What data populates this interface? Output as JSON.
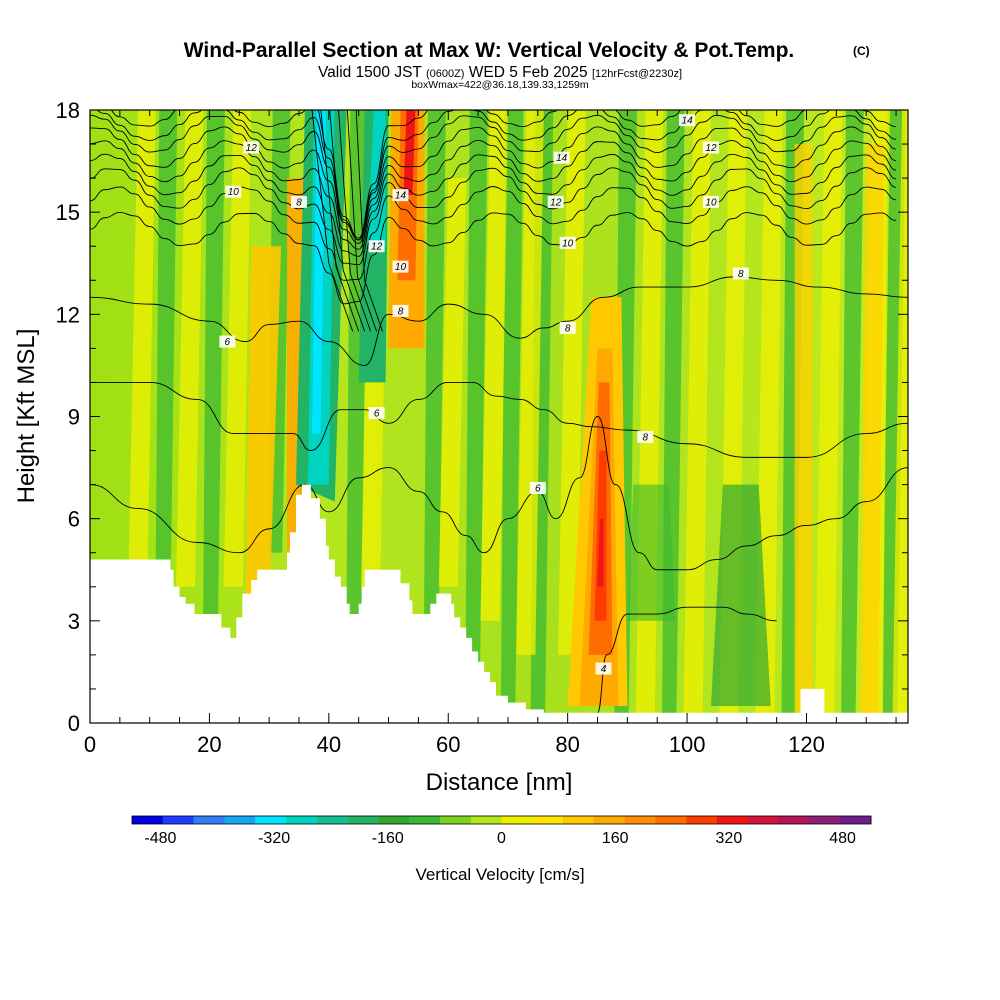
{
  "chart_data": {
    "type": "heatmap",
    "title": "Wind-Parallel Section at Max W: Vertical Velocity & Pot.Temp.",
    "title_mark": "(C)",
    "subtitle": {
      "pre": "Valid 1500 JST",
      "utc": "(0600Z)",
      "date": "WED 5 Feb 2025",
      "fcst": "[12hrFcst@2230z]"
    },
    "subtitle2": "boxWmax=422@36.18,139.33,1259m",
    "xlabel": "Distance [nm]",
    "ylabel": "Height [Kft MSL]",
    "xlim": [
      0,
      137
    ],
    "ylim": [
      0,
      18
    ],
    "xticks": [
      0,
      20,
      40,
      60,
      80,
      100,
      120
    ],
    "yticks": [
      0,
      3,
      6,
      9,
      12,
      15,
      18
    ],
    "colorbar": {
      "label": "Vertical Velocity [cm/s]",
      "ticks": [
        -480,
        -320,
        -160,
        0,
        160,
        320,
        480
      ],
      "min": -520,
      "max": 520,
      "colors": [
        "#0000e6",
        "#1e3cff",
        "#2f7df5",
        "#16a6f2",
        "#00e5ff",
        "#00d3c0",
        "#14c090",
        "#22b464",
        "#32a832",
        "#3cb932",
        "#7dd21e",
        "#b4e61e",
        "#eef000",
        "#ffe600",
        "#ffc800",
        "#ffaa00",
        "#ff8c00",
        "#ff6c00",
        "#ff3c00",
        "#f01414",
        "#d2143c",
        "#b4145a",
        "#8c1e78",
        "#6e1e8c"
      ]
    },
    "updraft_columns_nm": [
      10,
      27,
      35,
      52,
      85,
      110,
      120,
      130
    ],
    "downdraft_columns_nm": [
      38,
      49
    ],
    "theta_contours": [
      {
        "label": "4",
        "label_at": [
          86,
          1.6
        ]
      },
      {
        "label": "6",
        "label_at": [
          75,
          6.9
        ]
      },
      {
        "label": "6",
        "label_at": [
          48,
          9.1
        ]
      },
      {
        "label": "6",
        "label_at": [
          23,
          11.2
        ]
      },
      {
        "label": "8",
        "label_at": [
          93,
          8.4
        ]
      },
      {
        "label": "8",
        "label_at": [
          80,
          11.6
        ]
      },
      {
        "label": "8",
        "label_at": [
          52,
          12.1
        ]
      },
      {
        "label": "8",
        "label_at": [
          35,
          15.3
        ]
      },
      {
        "label": "8",
        "label_at": [
          109,
          13.2
        ]
      },
      {
        "label": "10",
        "label_at": [
          24,
          15.6
        ]
      },
      {
        "label": "10",
        "label_at": [
          52,
          13.4
        ]
      },
      {
        "label": "10",
        "label_at": [
          80,
          14.1
        ]
      },
      {
        "label": "10",
        "label_at": [
          104,
          15.3
        ]
      },
      {
        "label": "12",
        "label_at": [
          27,
          16.9
        ]
      },
      {
        "label": "12",
        "label_at": [
          48,
          14.0
        ]
      },
      {
        "label": "12",
        "label_at": [
          78,
          15.3
        ]
      },
      {
        "label": "12",
        "label_at": [
          104,
          16.9
        ]
      },
      {
        "label": "14",
        "label_at": [
          52,
          15.5
        ]
      },
      {
        "label": "14",
        "label_at": [
          79,
          16.6
        ]
      },
      {
        "label": "14",
        "label_at": [
          100,
          17.7
        ]
      }
    ]
  }
}
